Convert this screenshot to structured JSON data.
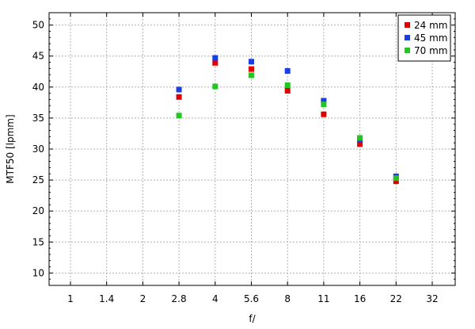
{
  "chart_data": {
    "type": "scatter",
    "xlabel": "f/",
    "ylabel": "MTF50 [lpmm]",
    "x_scale": "log2-stops",
    "x_ticks": [
      "1",
      "1.4",
      "2",
      "2.8",
      "4",
      "5.6",
      "8",
      "11",
      "16",
      "22",
      "32"
    ],
    "ylim": [
      8,
      52
    ],
    "y_ticks": [
      10,
      15,
      20,
      25,
      30,
      35,
      40,
      45,
      50
    ],
    "grid": true,
    "legend_position": "top-right",
    "series": [
      {
        "name": "24 mm",
        "color": "#e00000",
        "points": [
          {
            "x": "2.8",
            "y": 38.4
          },
          {
            "x": "4",
            "y": 43.9
          },
          {
            "x": "5.6",
            "y": 42.9
          },
          {
            "x": "8",
            "y": 39.4
          },
          {
            "x": "11",
            "y": 35.6
          },
          {
            "x": "16",
            "y": 30.8
          },
          {
            "x": "22",
            "y": 24.8
          }
        ]
      },
      {
        "name": "45 mm",
        "color": "#1a3fe0",
        "points": [
          {
            "x": "2.8",
            "y": 39.6
          },
          {
            "x": "4",
            "y": 44.7
          },
          {
            "x": "5.6",
            "y": 44.1
          },
          {
            "x": "8",
            "y": 42.6
          },
          {
            "x": "11",
            "y": 37.8
          },
          {
            "x": "16",
            "y": 31.5
          },
          {
            "x": "22",
            "y": 25.6
          }
        ]
      },
      {
        "name": "70 mm",
        "color": "#22c522",
        "points": [
          {
            "x": "2.8",
            "y": 35.4
          },
          {
            "x": "4",
            "y": 40.1
          },
          {
            "x": "5.6",
            "y": 41.9
          },
          {
            "x": "8",
            "y": 40.3
          },
          {
            "x": "11",
            "y": 37.2
          },
          {
            "x": "16",
            "y": 31.8
          },
          {
            "x": "22",
            "y": 25.3
          }
        ]
      }
    ]
  }
}
